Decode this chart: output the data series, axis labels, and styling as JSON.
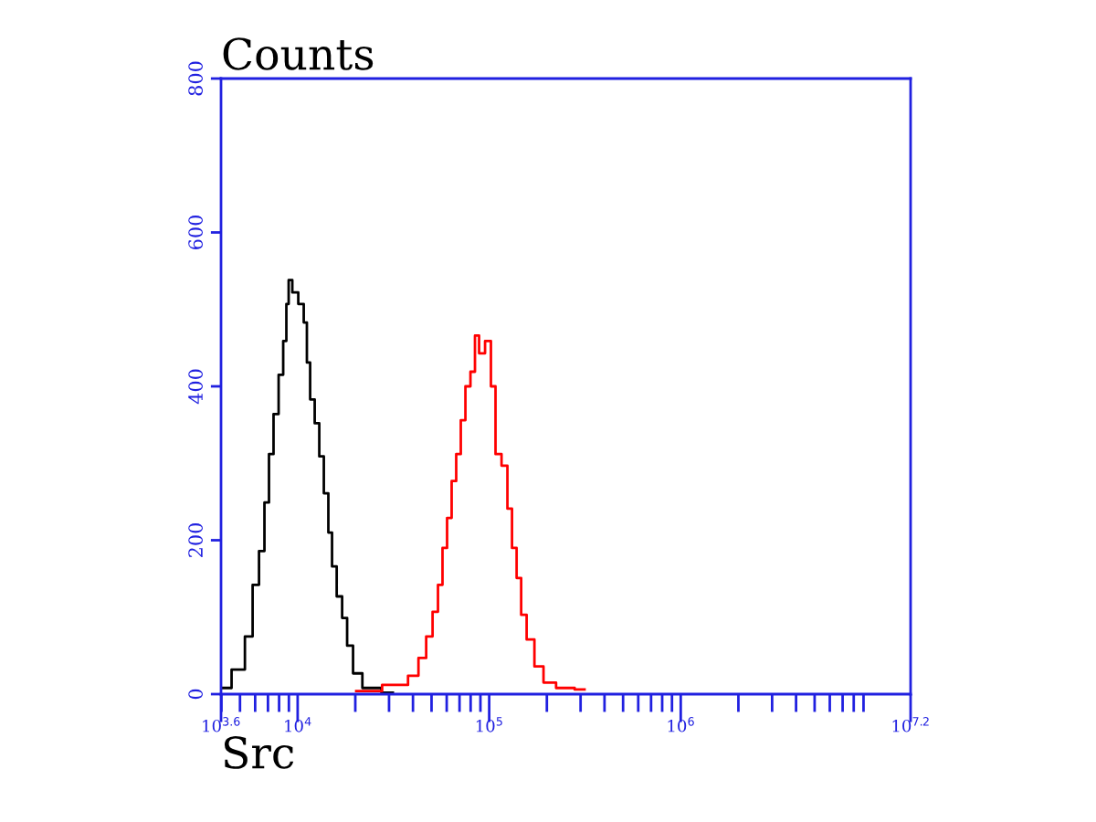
{
  "chart_data": {
    "type": "line",
    "title": "Counts",
    "xlabel": "Src",
    "log": "x",
    "xlim": [
      3981,
      15848932
    ],
    "xticks": [
      {
        "value": 3981,
        "label": "10$^{3.6}$"
      },
      {
        "value": 10000,
        "label": "10$^{4}$"
      },
      {
        "value": 100000,
        "label": "10$^{5}$"
      },
      {
        "value": 1000000,
        "label": "10$^{6}$"
      },
      {
        "value": 15848932,
        "label": "10$^{7.2}$"
      }
    ],
    "ylim": [
      0,
      800
    ],
    "yticks": [
      0,
      200,
      400,
      600,
      800
    ],
    "grid": false,
    "legend": false,
    "series": [
      {
        "color": "#000000",
        "x": [
          4027,
          5012,
          5598,
          6043,
          6527,
          6893,
          7278,
          7689,
          8222,
          8590,
          8873,
          9078,
          9683,
          10470,
          11050,
          11300,
          11940,
          12610,
          13330,
          14070,
          14860,
          15380,
          16600,
          17540,
          18710,
          20220,
          23330,
          31400
        ],
        "values": [
          8,
          32,
          75,
          142,
          186,
          249,
          312,
          364,
          415,
          459,
          507,
          538,
          522,
          507,
          483,
          431,
          383,
          352,
          309,
          261,
          210,
          166,
          127,
          99,
          63,
          27,
          8,
          2
        ]
      },
      {
        "color": "#ff0000",
        "x": [
          20220,
          35000,
          40380,
          45080,
          48690,
          52570,
          55480,
          58620,
          61920,
          65420,
          69110,
          73050,
          77230,
          82430,
          86120,
          90990,
          99310,
          104900,
          110900,
          121100,
          127900,
          135200,
          142900,
          150800,
          162900,
          181600,
          202600,
          244300,
          314600
        ],
        "values": [
          4,
          12,
          24,
          47,
          75,
          107,
          142,
          190,
          229,
          277,
          312,
          356,
          400,
          419,
          466,
          443,
          459,
          400,
          312,
          297,
          241,
          190,
          151,
          103,
          71,
          36,
          15,
          8,
          6
        ]
      }
    ]
  }
}
